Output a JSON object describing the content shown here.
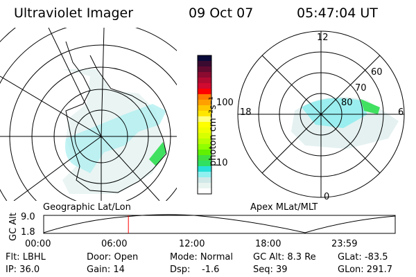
{
  "header": {
    "title": "Ultraviolet Imager",
    "date": "09 Oct 07",
    "time": "05:47:04 UT"
  },
  "left_map": {
    "label": "Geographic Lat/Lon"
  },
  "right_map": {
    "label": "Apex MLat/MLT",
    "mlt_labels": [
      "12",
      "6",
      "0",
      "18"
    ],
    "lat_labels": [
      "60",
      "70",
      "80"
    ]
  },
  "colorbar": {
    "label": "photon cm⁻²s⁻¹",
    "ticks": [
      "100",
      "10"
    ],
    "colors": [
      "#0a0a3a",
      "#3a0a30",
      "#600a30",
      "#8a0a30",
      "#b00a30",
      "#d00a30",
      "#ff0000",
      "#ff7a00",
      "#ffa000",
      "#ffc800",
      "#ffe600",
      "#ffff80",
      "#ffff00",
      "#f0ff00",
      "#d8ff00",
      "#b8ff00",
      "#90ff00",
      "#60f000",
      "#40e040",
      "#30e060",
      "#28e0d8",
      "#90f0f0",
      "#d0e8e8",
      "#e8f4f0",
      "#ffffff"
    ]
  },
  "altitude_plot": {
    "ylabel": "GC Alt",
    "ymax": "9.0",
    "ymin": "1.8",
    "xticks": [
      "00:00",
      "06:00",
      "12:00",
      "18:00",
      "23:59"
    ],
    "current_time_fraction": 0.241,
    "marker_color": "#ff0000"
  },
  "info": {
    "filter": "Flt: LBHL",
    "ip": "IP: 36.0",
    "door": "Door: Open",
    "gain": "Gain: 14",
    "mode": "Mode: Normal",
    "dsp_label": "Dsp:",
    "dsp_value": "-1.6",
    "gc_alt": "GC Alt: 8.3 Re",
    "seq": "Seq: 39",
    "glat": "GLat: -83.5",
    "glon": "GLon: 291.7"
  }
}
